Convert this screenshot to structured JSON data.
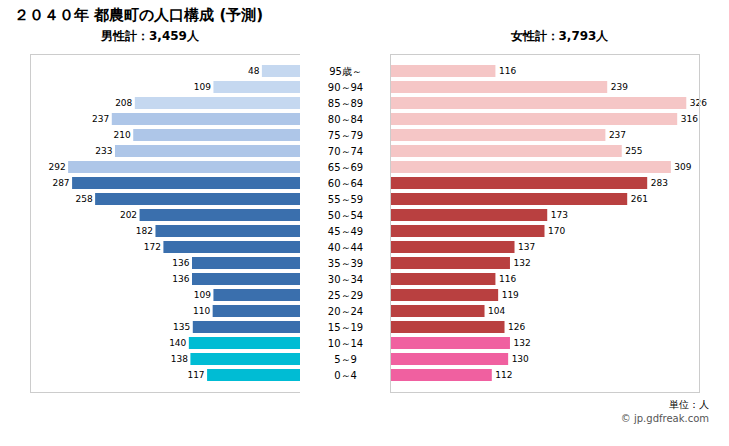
{
  "chart_data": {
    "type": "bar",
    "orientation": "horizontal",
    "title": "２０４０年 都農町の人口構成 (予測)",
    "categories": [
      "95歳～",
      "90～94",
      "85～89",
      "80～84",
      "75～79",
      "70～74",
      "65～69",
      "60～64",
      "55～59",
      "50～54",
      "45～49",
      "40～44",
      "35～39",
      "30～34",
      "25～29",
      "20～24",
      "15～19",
      "10～14",
      "5～9",
      "0～4"
    ],
    "series": [
      {
        "values": [
          48,
          109,
          208,
          237,
          210,
          233,
          292,
          287,
          258,
          202,
          182,
          172,
          136,
          136,
          109,
          110,
          135,
          140,
          138,
          117
        ],
        "colors": [
          "#c5d8f0",
          "#c5d8f0",
          "#c5d8f0",
          "#aec6e8",
          "#aec6e8",
          "#aec6e8",
          "#aec6e8",
          "#3a6fad",
          "#3a6fad",
          "#3a6fad",
          "#3a6fad",
          "#3a6fad",
          "#3a6fad",
          "#3a6fad",
          "#3a6fad",
          "#3a6fad",
          "#3a6fad",
          "#00bcd4",
          "#00bcd4",
          "#00bcd4"
        ]
      },
      {
        "values": [
          116,
          239,
          326,
          316,
          237,
          255,
          309,
          283,
          261,
          173,
          170,
          137,
          132,
          116,
          119,
          104,
          126,
          132,
          130,
          112
        ],
        "colors": [
          "#f5c6c6",
          "#f5c6c6",
          "#f5c6c6",
          "#f5c6c6",
          "#f5c6c6",
          "#f5c6c6",
          "#f5c6c6",
          "#b94040",
          "#b94040",
          "#b94040",
          "#b94040",
          "#b94040",
          "#b94040",
          "#b94040",
          "#b94040",
          "#b94040",
          "#b94040",
          "#f060a0",
          "#f060a0",
          "#f060a0"
        ]
      }
    ],
    "annotations": [
      "男性計：3,459人",
      "女性計：3,793人",
      "単位：人",
      "© jp.gdfreak.com"
    ],
    "xlim": [
      0,
      340
    ],
    "data_labels": true,
    "tick_labels": "y",
    "grid": false
  }
}
